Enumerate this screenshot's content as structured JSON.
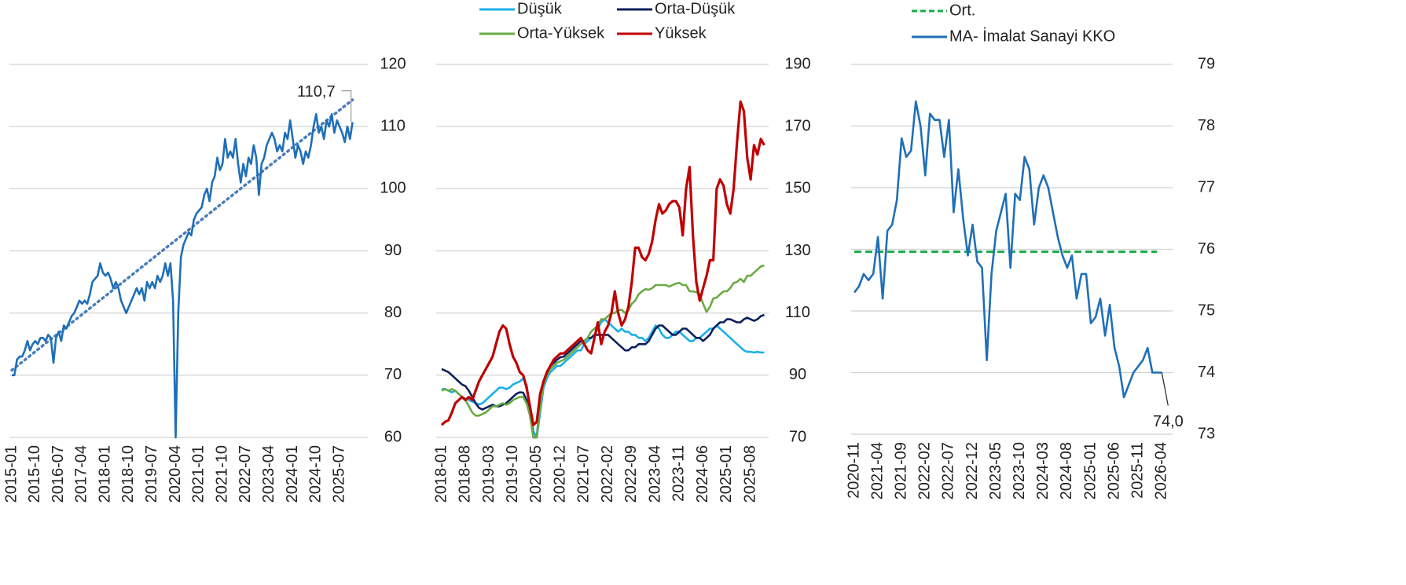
{
  "chart_data": [
    {
      "type": "line",
      "categories": [
        "2015-01",
        null,
        null,
        null,
        null,
        null,
        null,
        null,
        null,
        "2015-10",
        null,
        null,
        null,
        null,
        null,
        null,
        null,
        null,
        "2016-07",
        null,
        null,
        null,
        null,
        null,
        null,
        null,
        null,
        "2017-04",
        null,
        null,
        null,
        null,
        null,
        null,
        null,
        null,
        "2018-01",
        null,
        null,
        null,
        null,
        null,
        null,
        null,
        null,
        "2018-10",
        null,
        null,
        null,
        null,
        null,
        null,
        null,
        null,
        "2019-07",
        null,
        null,
        null,
        null,
        null,
        null,
        null,
        null,
        "2020-04",
        null,
        null,
        null,
        null,
        null,
        null,
        null,
        null,
        "2021-01",
        null,
        null,
        null,
        null,
        null,
        null,
        null,
        null,
        "2021-10",
        null,
        null,
        null,
        null,
        null,
        null,
        null,
        null,
        "2022-07",
        null,
        null,
        null,
        null,
        null,
        null,
        null,
        null,
        "2023-04",
        null,
        null,
        null,
        null,
        null,
        null,
        null,
        null,
        "2024-01",
        null,
        null,
        null,
        null,
        null,
        null,
        null,
        null,
        "2024-10",
        null,
        null,
        null,
        null,
        null,
        null,
        null,
        null,
        "2025-07",
        null,
        null,
        null,
        null,
        null
      ],
      "series": [
        {
          "color": "#1f6fb8",
          "values": [
            70,
            70,
            72.5,
            73,
            73,
            74,
            75.5,
            74,
            75,
            75.5,
            75,
            76,
            76,
            75.5,
            76.5,
            76,
            72,
            76,
            77,
            75.5,
            78,
            77.5,
            78.5,
            79.5,
            80,
            81,
            82,
            81.5,
            82,
            81.5,
            83,
            85,
            85.5,
            86,
            88,
            86.5,
            86,
            86.5,
            85.5,
            84,
            85,
            84,
            82,
            81,
            80,
            81,
            82,
            83,
            84,
            83,
            84,
            82,
            85,
            84,
            85,
            84,
            86,
            85,
            86,
            88,
            86,
            88,
            82,
            60,
            80,
            89,
            91,
            92,
            93,
            92.5,
            95,
            96,
            96.5,
            97,
            99,
            100,
            98,
            101,
            102,
            105,
            103,
            104,
            108,
            105,
            106,
            105,
            108,
            104,
            101,
            104,
            102,
            105,
            104,
            107,
            105,
            99,
            104,
            105,
            107,
            108,
            109,
            108,
            106,
            107,
            106,
            109,
            108,
            111,
            108,
            105,
            107,
            106,
            104,
            106,
            105,
            107,
            110,
            112,
            109,
            110,
            108,
            111,
            110,
            112,
            109,
            111,
            110,
            109,
            107.5,
            110,
            108,
            110.7
          ]
        }
      ],
      "trend": {
        "color": "#4a7ebb",
        "start": 70.8,
        "end": 114.3
      },
      "annotation": "110,7",
      "ylim": [
        60,
        120
      ],
      "yticks": [
        60,
        70,
        80,
        90,
        100,
        110,
        120
      ],
      "grid": true
    },
    {
      "type": "line",
      "categories": [
        "2018-01",
        null,
        null,
        null,
        null,
        null,
        null,
        "2018-08",
        null,
        null,
        null,
        null,
        null,
        null,
        "2019-03",
        null,
        null,
        null,
        null,
        null,
        null,
        "2019-10",
        null,
        null,
        null,
        null,
        null,
        null,
        "2020-05",
        null,
        null,
        null,
        null,
        null,
        null,
        "2020-12",
        null,
        null,
        null,
        null,
        null,
        null,
        "2021-07",
        null,
        null,
        null,
        null,
        null,
        null,
        "2022-02",
        null,
        null,
        null,
        null,
        null,
        null,
        "2022-09",
        null,
        null,
        null,
        null,
        null,
        null,
        "2023-04",
        null,
        null,
        null,
        null,
        null,
        null,
        "2023-11",
        null,
        null,
        null,
        null,
        null,
        null,
        "2024-06",
        null,
        null,
        null,
        null,
        null,
        null,
        "2025-01",
        null,
        null,
        null,
        null,
        null,
        null,
        "2025-08",
        null,
        null,
        null,
        null
      ],
      "series": [
        {
          "name": "Düşük",
          "color": "#1ab0ea",
          "values": [
            85.5,
            85.6,
            85,
            84.5,
            85,
            84,
            83,
            82.5,
            82,
            81.5,
            81,
            80.6,
            81,
            82,
            83,
            84,
            85,
            86,
            86,
            85.5,
            86,
            87,
            87.5,
            88,
            89,
            87,
            80,
            72,
            70,
            78,
            86,
            89,
            91,
            92,
            93,
            93,
            94,
            95,
            96,
            97,
            98,
            98,
            100,
            101,
            102,
            103,
            105,
            107,
            108,
            107,
            106,
            105,
            104,
            105,
            104,
            104,
            103,
            103,
            102,
            102,
            101,
            102,
            104,
            106,
            105,
            103,
            102,
            102,
            103,
            104,
            104,
            103,
            102,
            101,
            101,
            102,
            102,
            103,
            104,
            105,
            105,
            106,
            105,
            104,
            103,
            102,
            101,
            100,
            99,
            98,
            97.5,
            97.5,
            97.3,
            97.5,
            97.3,
            97.3
          ]
        },
        {
          "name": "Orta-Düşük",
          "color": "#0d1f5c",
          "values": [
            92,
            91.5,
            91,
            90,
            89,
            88,
            87,
            86.5,
            85,
            83,
            81,
            79.5,
            79,
            79.5,
            80,
            80.5,
            80,
            80,
            80.5,
            81,
            82,
            83,
            84,
            84.5,
            84.4,
            82,
            78,
            70,
            70,
            82,
            88,
            91,
            93,
            94,
            95,
            95.8,
            96,
            97,
            98,
            99,
            100,
            101,
            101,
            102,
            102,
            103,
            103,
            103,
            103,
            103,
            102,
            101,
            100,
            99,
            98,
            98,
            99,
            99,
            100,
            100,
            100,
            101,
            103,
            105,
            106,
            106,
            105,
            104,
            103,
            103,
            104,
            105,
            105,
            104,
            103,
            102,
            102,
            101,
            102,
            103,
            105,
            106,
            107,
            107,
            108,
            108,
            107.5,
            107,
            107,
            108,
            108.5,
            108,
            107.5,
            108,
            109,
            109.4
          ]
        },
        {
          "name": "Orta-Yüksek",
          "color": "#6aaa45",
          "values": [
            85,
            85.5,
            85,
            85.5,
            85,
            84,
            83,
            82,
            80,
            78,
            77,
            77,
            77.5,
            78,
            79,
            80,
            80,
            80.5,
            81,
            80.5,
            81,
            82,
            82.5,
            83,
            83,
            81,
            77,
            70,
            70,
            80,
            87,
            90,
            92,
            93,
            94,
            94.5,
            95,
            96,
            97,
            98,
            99,
            100,
            101,
            102,
            104,
            105,
            106,
            108,
            108,
            109,
            110,
            110,
            111,
            111,
            110,
            111,
            113,
            114,
            116,
            117,
            117.7,
            117.5,
            118,
            119,
            119,
            119,
            119,
            118.5,
            119,
            119.5,
            119.7,
            119,
            119,
            117,
            117,
            116.7,
            116,
            113,
            110.4,
            112,
            114.7,
            115,
            116,
            117,
            117,
            118,
            119.7,
            120,
            121,
            120,
            122,
            122,
            123,
            124,
            125,
            125.3
          ]
        },
        {
          "name": "Yüksek",
          "color": "#c00000",
          "values": [
            74,
            75,
            75.5,
            78,
            81,
            82,
            83,
            82,
            83,
            82,
            85,
            88,
            90,
            92,
            94,
            96,
            100,
            104,
            106,
            105,
            100,
            96,
            94,
            91,
            90,
            86,
            80,
            74,
            75,
            84,
            88,
            91,
            93,
            95,
            96,
            97,
            97,
            98,
            99,
            100,
            101,
            102,
            100,
            98,
            97,
            102,
            107,
            100,
            104,
            106,
            110,
            117,
            110,
            106,
            108,
            112,
            120,
            131,
            131,
            128,
            127,
            129,
            133,
            140,
            145,
            142,
            143,
            145,
            146,
            146,
            144,
            135,
            150,
            157,
            135,
            120,
            114,
            118,
            122,
            127,
            127,
            150,
            153,
            151,
            145,
            142,
            150,
            165,
            178,
            175,
            160,
            153,
            164,
            161,
            166,
            164
          ]
        }
      ],
      "ylim": [
        70,
        190
      ],
      "yticks": [
        70,
        90,
        110,
        130,
        150,
        170,
        190
      ],
      "grid": true
    },
    {
      "type": "line",
      "categories": [
        "2020-11",
        null,
        null,
        null,
        null,
        "2021-04",
        null,
        null,
        null,
        null,
        "2021-09",
        null,
        null,
        null,
        null,
        "2022-02",
        null,
        null,
        null,
        null,
        "2022-07",
        null,
        null,
        null,
        null,
        "2022-12",
        null,
        null,
        null,
        null,
        "2023-05",
        null,
        null,
        null,
        null,
        "2023-10",
        null,
        null,
        null,
        null,
        "2024-03",
        null,
        null,
        null,
        null,
        "2024-08",
        null,
        null,
        null,
        null,
        "2025-01",
        null,
        null,
        null,
        null,
        "2025-06",
        null,
        null,
        null,
        null,
        "2025-11",
        null,
        null,
        null,
        null,
        "2026-04"
      ],
      "series": [
        {
          "name": "Ort.",
          "color": "#1aab4a",
          "dashed": true,
          "value": 75.96
        },
        {
          "name": "MA- İmalat Sanayi  KKO",
          "color": "#1f6fb8",
          "values": [
            75.3,
            75.4,
            75.6,
            75.5,
            75.6,
            76.2,
            75.2,
            76.3,
            76.4,
            76.8,
            77.8,
            77.5,
            77.6,
            78.4,
            78.0,
            77.2,
            78.2,
            78.1,
            78.1,
            77.5,
            78.1,
            76.6,
            77.3,
            76.5,
            75.9,
            76.4,
            75.8,
            75.7,
            74.2,
            75.6,
            76.3,
            76.6,
            76.9,
            75.7,
            76.9,
            76.8,
            77.5,
            77.3,
            76.4,
            77.0,
            77.2,
            77.0,
            76.6,
            76.2,
            75.9,
            75.7,
            75.9,
            75.2,
            75.6,
            75.6,
            74.8,
            74.9,
            75.2,
            74.6,
            75.1,
            74.4,
            74.1,
            73.6,
            73.8,
            74.0,
            74.1,
            74.2,
            74.4,
            74.0,
            74.0,
            74.0
          ]
        }
      ],
      "annotation": "74,0",
      "ylim": [
        73,
        79
      ],
      "yticks": [
        73,
        74,
        75,
        76,
        77,
        78,
        79
      ],
      "grid": true
    }
  ]
}
